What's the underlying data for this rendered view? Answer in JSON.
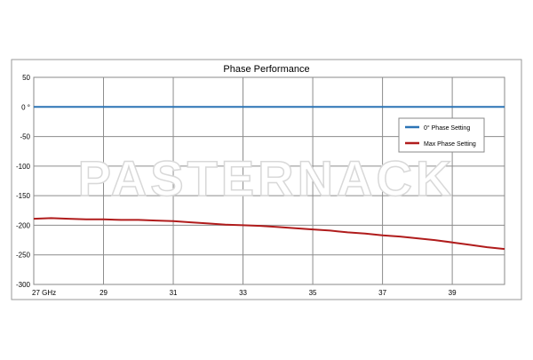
{
  "chart_data": {
    "type": "line",
    "title": "Phase Performance",
    "xlabel": "",
    "ylabel": "",
    "x_unit": "GHz",
    "xlim": [
      27,
      40.5
    ],
    "ylim": [
      -300,
      50
    ],
    "x_ticks": [
      27,
      29,
      31,
      33,
      35,
      37,
      39
    ],
    "x_tick_labels": [
      "27 GHz",
      "29",
      "31",
      "33",
      "35",
      "37",
      "39"
    ],
    "y_ticks": [
      50,
      0,
      -50,
      -100,
      -150,
      -200,
      -250,
      -300
    ],
    "y_tick_labels": [
      "50",
      "0 °",
      "-50",
      "-100",
      "-150",
      "-200",
      "-250",
      "-300"
    ],
    "grid": true,
    "legend_position": "upper-right",
    "series": [
      {
        "name": "0° Phase Setting",
        "color": "#2b74b5",
        "x": [
          27,
          28,
          29,
          30,
          31,
          32,
          33,
          34,
          35,
          36,
          37,
          38,
          39,
          40,
          40.5
        ],
        "y": [
          0,
          0,
          0,
          0,
          0,
          0,
          0,
          0,
          0,
          0,
          0,
          0,
          0,
          0,
          0
        ]
      },
      {
        "name": "Max Phase Setting",
        "color": "#b01c1c",
        "x": [
          27,
          27.5,
          28,
          28.5,
          29,
          29.5,
          30,
          30.5,
          31,
          31.5,
          32,
          32.5,
          33,
          33.5,
          34,
          34.5,
          35,
          35.5,
          36,
          36.5,
          37,
          37.5,
          38,
          38.5,
          39,
          39.5,
          40,
          40.5
        ],
        "y": [
          -189,
          -188,
          -189,
          -190,
          -190,
          -191,
          -191,
          -192,
          -193,
          -195,
          -197,
          -199,
          -200,
          -201,
          -203,
          -205,
          -207,
          -209,
          -212,
          -214,
          -217,
          -219,
          -222,
          -225,
          -229,
          -233,
          -237,
          -240
        ]
      }
    ],
    "watermark": "PASTERNACK"
  }
}
